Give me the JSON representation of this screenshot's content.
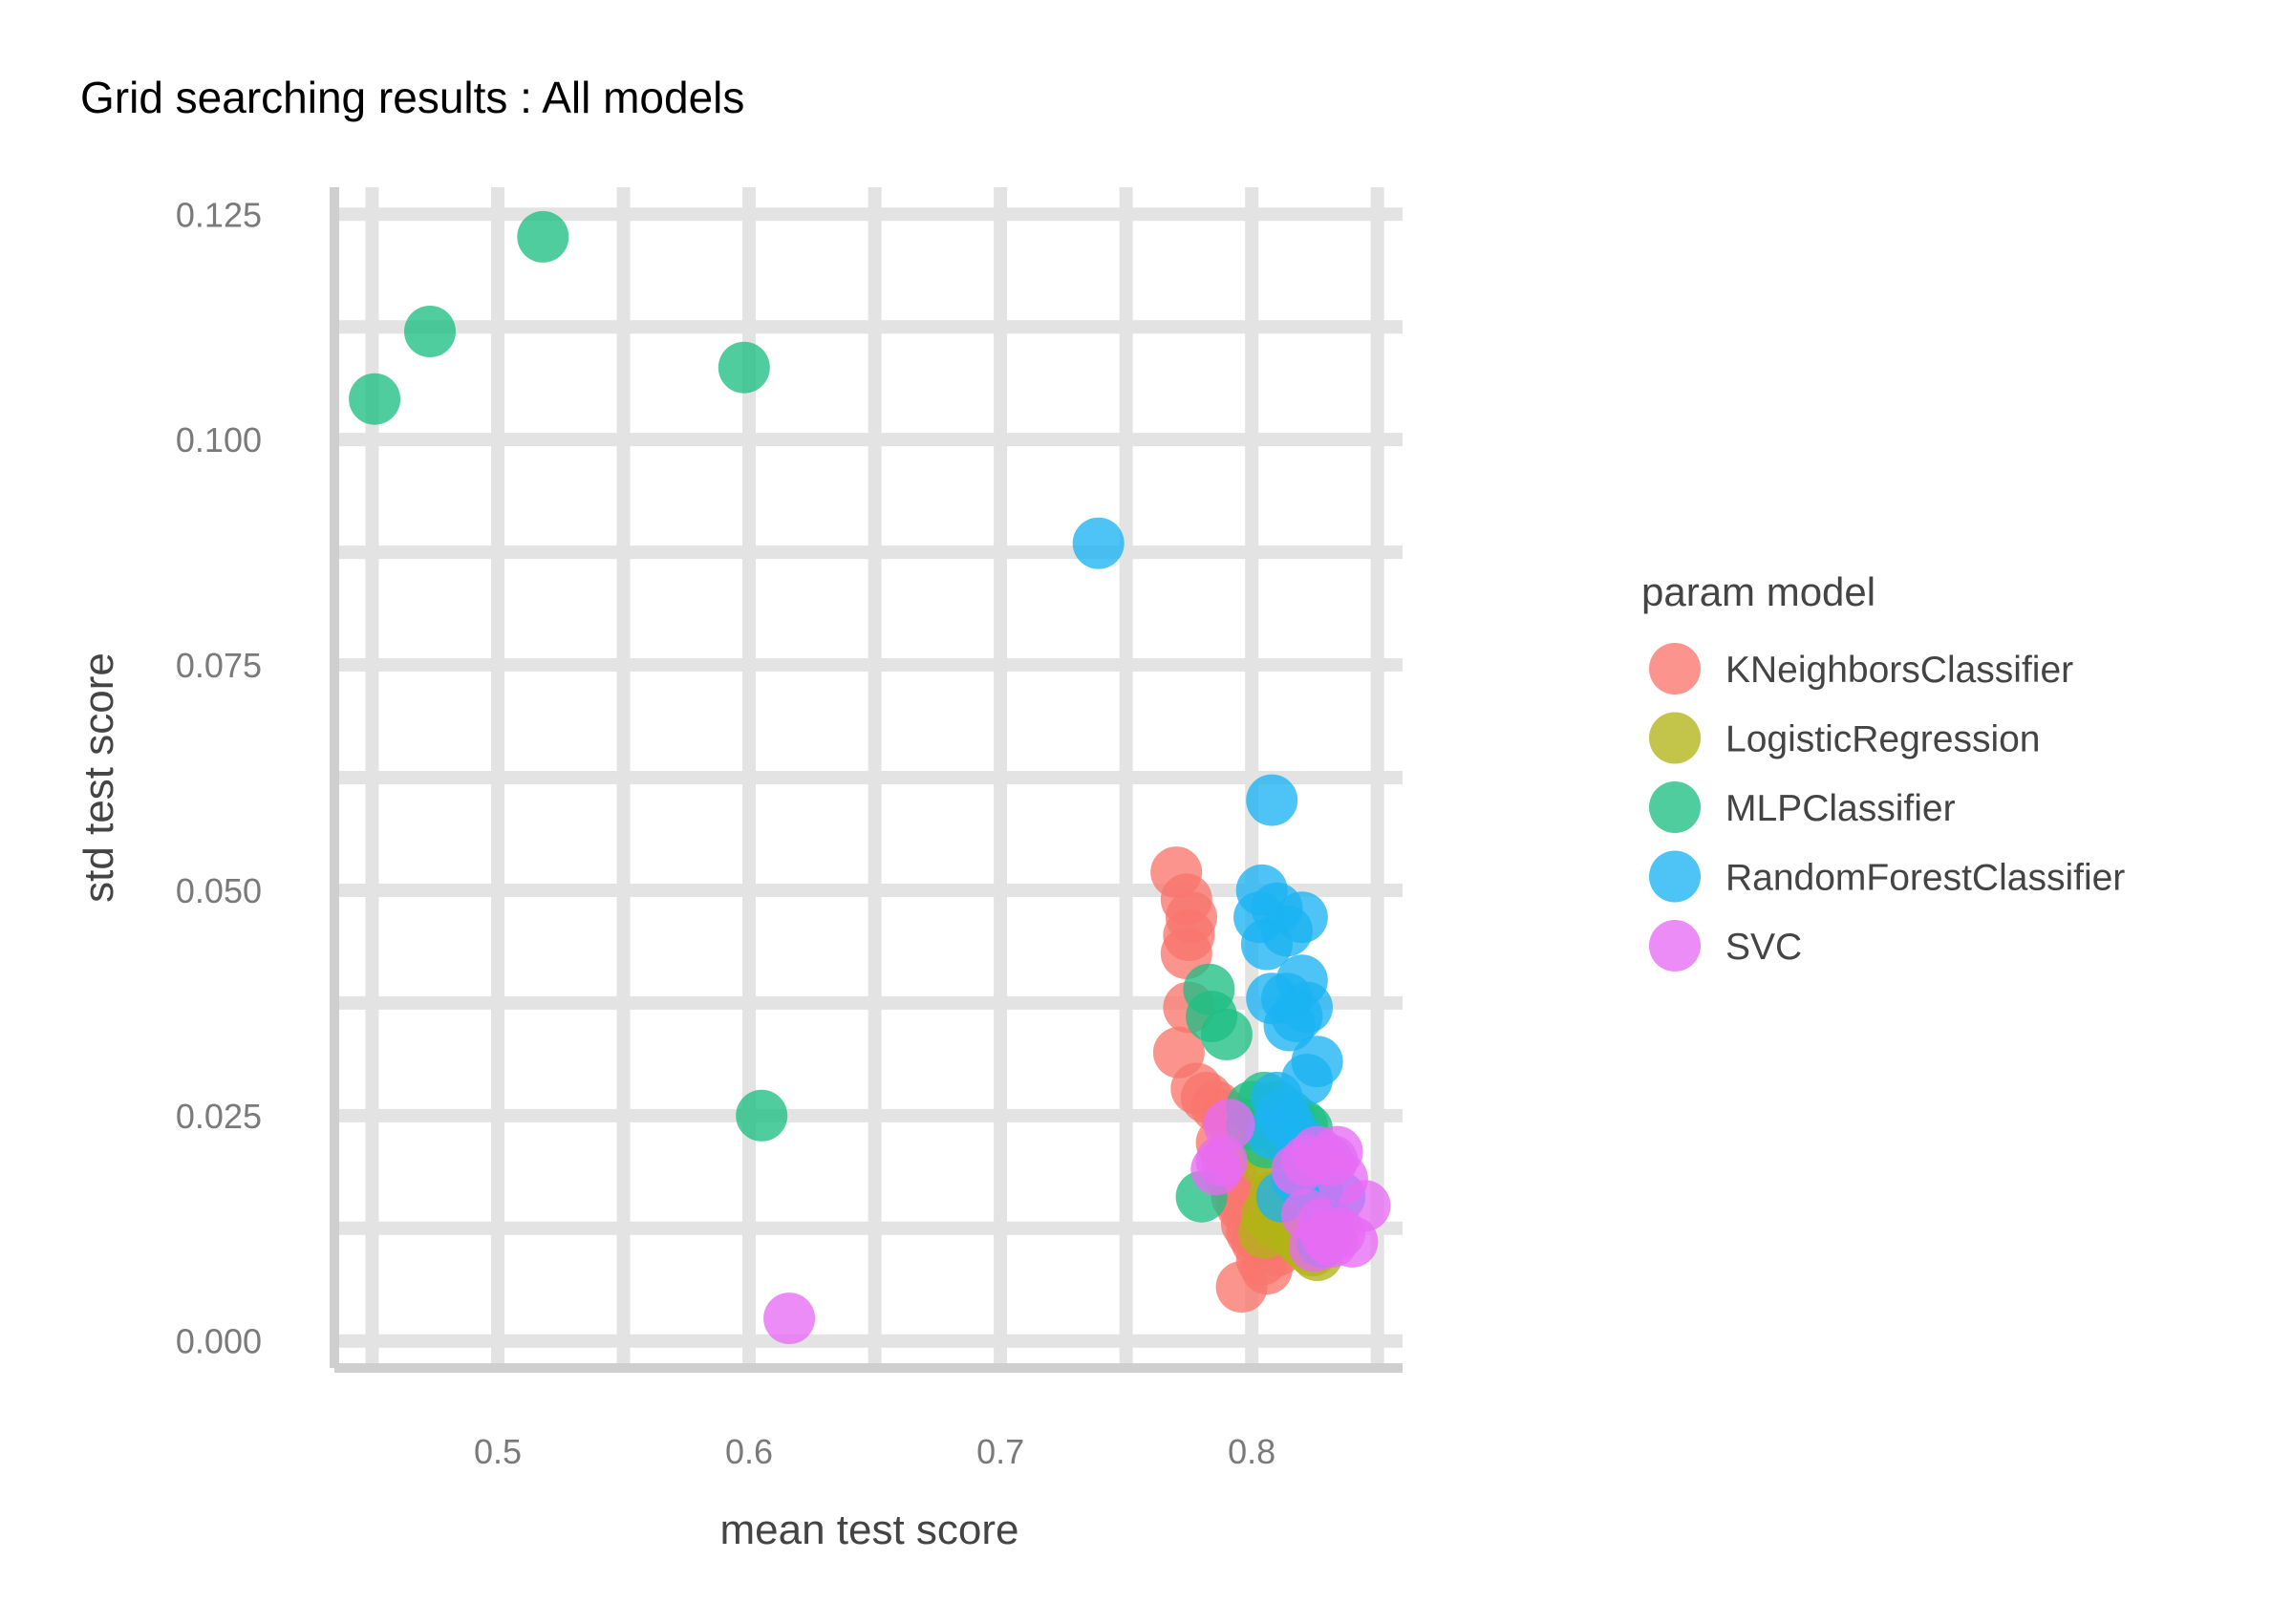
{
  "chart_data": {
    "type": "scatter",
    "title": "Grid searching results :  All models",
    "xlabel": "mean test score",
    "ylabel": "std test score",
    "xlim": [
      0.435,
      0.86
    ],
    "ylim": [
      -0.003,
      0.128
    ],
    "x_ticks": [
      0.5,
      0.6,
      0.7,
      0.8
    ],
    "x_tick_labels": [
      "0.5",
      "0.6",
      "0.7",
      "0.8"
    ],
    "y_ticks": [
      0.0,
      0.025,
      0.05,
      0.075,
      0.1,
      0.125
    ],
    "y_tick_labels": [
      "0.000",
      "0.025",
      "0.050",
      "0.075",
      "0.100",
      "0.125"
    ],
    "x_grid": [
      0.45,
      0.5,
      0.55,
      0.6,
      0.65,
      0.7,
      0.75,
      0.8,
      0.85
    ],
    "y_grid": [
      0.0,
      0.0125,
      0.025,
      0.0375,
      0.05,
      0.0625,
      0.075,
      0.0875,
      0.1,
      0.1125,
      0.125
    ],
    "grid": true,
    "legend_title": "param model",
    "legend_position": "right",
    "series": [
      {
        "name": "KNeighborsClassifier",
        "color": "#F8766D",
        "points": [
          [
            0.77,
            0.052
          ],
          [
            0.774,
            0.049
          ],
          [
            0.776,
            0.047
          ],
          [
            0.775,
            0.045
          ],
          [
            0.774,
            0.043
          ],
          [
            0.775,
            0.037
          ],
          [
            0.771,
            0.032
          ],
          [
            0.778,
            0.028
          ],
          [
            0.782,
            0.027
          ],
          [
            0.786,
            0.026
          ],
          [
            0.79,
            0.025
          ],
          [
            0.788,
            0.022
          ],
          [
            0.79,
            0.02
          ],
          [
            0.792,
            0.018
          ],
          [
            0.794,
            0.016
          ],
          [
            0.796,
            0.015
          ],
          [
            0.798,
            0.013
          ],
          [
            0.8,
            0.012
          ],
          [
            0.802,
            0.011
          ],
          [
            0.804,
            0.009
          ],
          [
            0.796,
            0.006
          ],
          [
            0.806,
            0.008
          ],
          [
            0.81,
            0.01
          ],
          [
            0.812,
            0.012
          ],
          [
            0.808,
            0.014
          ]
        ]
      },
      {
        "name": "LogisticRegression",
        "color": "#B2B317",
        "points": [
          [
            0.8,
            0.022
          ],
          [
            0.805,
            0.02
          ],
          [
            0.81,
            0.018
          ],
          [
            0.815,
            0.016
          ],
          [
            0.812,
            0.015
          ],
          [
            0.806,
            0.014
          ],
          [
            0.81,
            0.013
          ],
          [
            0.816,
            0.012
          ],
          [
            0.82,
            0.011
          ],
          [
            0.824,
            0.01
          ],
          [
            0.826,
            0.0095
          ],
          [
            0.805,
            0.012
          ],
          [
            0.809,
            0.016
          ]
        ]
      },
      {
        "name": "MLPClassifier",
        "color": "#1FBF84",
        "points": [
          [
            0.518,
            0.1225
          ],
          [
            0.473,
            0.112
          ],
          [
            0.451,
            0.1045
          ],
          [
            0.598,
            0.108
          ],
          [
            0.605,
            0.025
          ],
          [
            0.783,
            0.039
          ],
          [
            0.784,
            0.036
          ],
          [
            0.79,
            0.034
          ],
          [
            0.78,
            0.016
          ],
          [
            0.8,
            0.026
          ],
          [
            0.805,
            0.027
          ],
          [
            0.81,
            0.026
          ],
          [
            0.815,
            0.025
          ],
          [
            0.82,
            0.024
          ],
          [
            0.822,
            0.0235
          ],
          [
            0.812,
            0.023
          ],
          [
            0.8,
            0.024
          ],
          [
            0.806,
            0.022
          ]
        ]
      },
      {
        "name": "RandomForestClassifier",
        "color": "#1BB4F2",
        "points": [
          [
            0.739,
            0.0885
          ],
          [
            0.808,
            0.06
          ],
          [
            0.804,
            0.05
          ],
          [
            0.81,
            0.048
          ],
          [
            0.803,
            0.047
          ],
          [
            0.82,
            0.047
          ],
          [
            0.814,
            0.0455
          ],
          [
            0.806,
            0.044
          ],
          [
            0.82,
            0.04
          ],
          [
            0.808,
            0.038
          ],
          [
            0.814,
            0.038
          ],
          [
            0.822,
            0.037
          ],
          [
            0.818,
            0.036
          ],
          [
            0.815,
            0.035
          ],
          [
            0.826,
            0.031
          ],
          [
            0.822,
            0.029
          ],
          [
            0.81,
            0.027
          ],
          [
            0.812,
            0.025
          ],
          [
            0.815,
            0.024
          ],
          [
            0.808,
            0.023
          ],
          [
            0.82,
            0.022
          ],
          [
            0.824,
            0.021
          ],
          [
            0.83,
            0.02
          ],
          [
            0.818,
            0.018
          ],
          [
            0.826,
            0.017
          ],
          [
            0.835,
            0.016
          ],
          [
            0.812,
            0.016
          ],
          [
            0.83,
            0.013
          ],
          [
            0.828,
            0.011
          ]
        ]
      },
      {
        "name": "SVC",
        "color": "#E76BF3",
        "points": [
          [
            0.616,
            0.0025
          ],
          [
            0.791,
            0.024
          ],
          [
            0.786,
            0.019
          ],
          [
            0.788,
            0.02
          ],
          [
            0.818,
            0.019
          ],
          [
            0.822,
            0.02
          ],
          [
            0.826,
            0.021
          ],
          [
            0.832,
            0.02
          ],
          [
            0.834,
            0.021
          ],
          [
            0.836,
            0.018
          ],
          [
            0.845,
            0.015
          ],
          [
            0.822,
            0.014
          ],
          [
            0.828,
            0.013
          ],
          [
            0.835,
            0.012
          ],
          [
            0.832,
            0.011
          ],
          [
            0.84,
            0.011
          ],
          [
            0.825,
            0.0105
          ],
          [
            0.83,
            0.0115
          ]
        ]
      }
    ]
  }
}
